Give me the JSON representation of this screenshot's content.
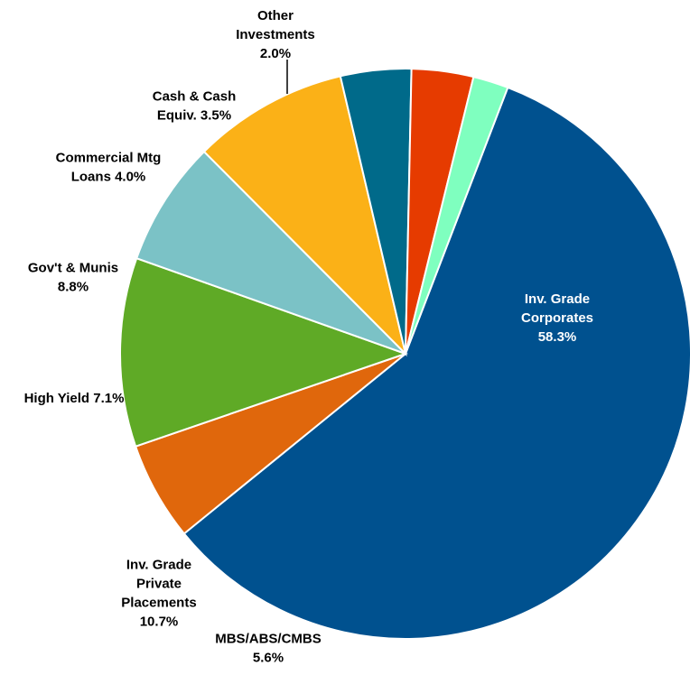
{
  "chart_data": {
    "type": "pie",
    "title": "",
    "slices": [
      {
        "label": "Inv. Grade Corporates",
        "value": 58.3,
        "label_lines": [
          "Inv. Grade",
          "Corporates",
          "58.3%"
        ],
        "color": "#00518F",
        "label_color": "#ffffff"
      },
      {
        "label": "MBS/ABS/CMBS",
        "value": 5.6,
        "label_lines": [
          "MBS/ABS/CMBS",
          "5.6%"
        ],
        "color": "#E0670C",
        "label_color": "#000000"
      },
      {
        "label": "Inv. Grade Private Placements",
        "value": 10.7,
        "label_lines": [
          "Inv. Grade",
          "Private",
          "Placements",
          "10.7%"
        ],
        "color": "#5FAA26",
        "label_color": "#000000"
      },
      {
        "label": "High Yield",
        "value": 7.1,
        "label_lines": [
          "High Yield 7.1%"
        ],
        "color": "#7BC2C6",
        "label_color": "#000000"
      },
      {
        "label": "Gov't & Munis",
        "value": 8.8,
        "label_lines": [
          "Gov't & Munis",
          "8.8%"
        ],
        "color": "#FBB117",
        "label_color": "#000000"
      },
      {
        "label": "Commercial Mtg Loans",
        "value": 4.0,
        "label_lines": [
          "Commercial Mtg",
          "Loans 4.0%"
        ],
        "color": "#006A8A",
        "label_color": "#000000"
      },
      {
        "label": "Cash & Cash Equiv.",
        "value": 3.5,
        "label_lines": [
          "Cash & Cash",
          "Equiv. 3.5%"
        ],
        "color": "#E63B00",
        "label_color": "#000000"
      },
      {
        "label": "Other Investments",
        "value": 2.0,
        "label_lines": [
          "Other",
          "Investments",
          "2.0%"
        ],
        "color": "#7FFFBF",
        "label_color": "#000000"
      }
    ]
  }
}
